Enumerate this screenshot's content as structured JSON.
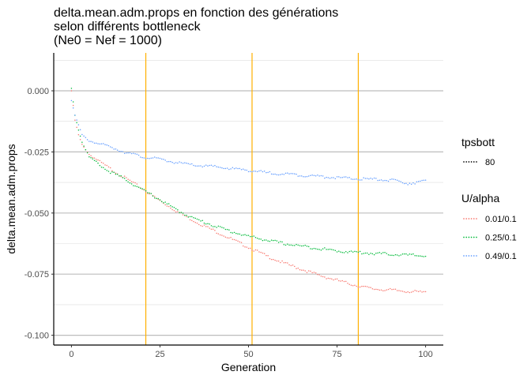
{
  "chart_data": {
    "type": "scatter",
    "title_lines": [
      "delta.mean.adm.props en fonction des générations",
      " selon différents bottleneck",
      " (Ne0 = Nef = 1000)"
    ],
    "xlabel": "Generation",
    "ylabel": "delta.mean.adm.props",
    "xlim": [
      -5,
      105
    ],
    "ylim": [
      -0.104,
      0.0155
    ],
    "x_ticks": [
      0,
      25,
      50,
      75,
      100
    ],
    "x_tick_labels": [
      "0",
      "25",
      "50",
      "75",
      "100"
    ],
    "y_ticks": [
      0.0,
      -0.025,
      -0.05,
      -0.075,
      -0.1
    ],
    "y_tick_labels": [
      "0.000",
      "-0.025",
      "-0.050",
      "-0.075",
      "-0.100"
    ],
    "y_minor_ticks": [
      0.0125,
      -0.0125,
      -0.0375,
      -0.0625,
      -0.0875
    ],
    "grid": true,
    "vlines": {
      "x": [
        21,
        51,
        81
      ],
      "color": "#FFB000"
    },
    "legend_placement": "right",
    "legends": [
      {
        "title": "tpsbott",
        "entries": [
          {
            "label": "80",
            "color": "#000000"
          }
        ]
      },
      {
        "title": "U/alpha",
        "entries": [
          {
            "label": "0.01/0.1",
            "color": "#F8766D"
          },
          {
            "label": "0.25/0.1",
            "color": "#00BA38"
          },
          {
            "label": "0.49/0.1",
            "color": "#619CFF"
          }
        ]
      }
    ],
    "series": [
      {
        "name": "0.01/0.1",
        "color": "#F8766D",
        "anchors": [
          [
            0,
            0
          ],
          [
            1,
            -0.012
          ],
          [
            2,
            -0.018
          ],
          [
            3,
            -0.022
          ],
          [
            5,
            -0.026
          ],
          [
            10,
            -0.031
          ],
          [
            15,
            -0.0355
          ],
          [
            20,
            -0.04
          ],
          [
            25,
            -0.045
          ],
          [
            30,
            -0.0495
          ],
          [
            35,
            -0.0535
          ],
          [
            40,
            -0.057
          ],
          [
            45,
            -0.0605
          ],
          [
            50,
            -0.064
          ],
          [
            55,
            -0.0675
          ],
          [
            60,
            -0.0705
          ],
          [
            65,
            -0.073
          ],
          [
            70,
            -0.0755
          ],
          [
            75,
            -0.0775
          ],
          [
            80,
            -0.0795
          ],
          [
            85,
            -0.081
          ],
          [
            90,
            -0.0815
          ],
          [
            95,
            -0.082
          ],
          [
            100,
            -0.0825
          ]
        ]
      },
      {
        "name": "0.25/0.1",
        "color": "#00BA38",
        "anchors": [
          [
            0,
            0.001
          ],
          [
            1,
            -0.01
          ],
          [
            2,
            -0.016
          ],
          [
            3,
            -0.021
          ],
          [
            5,
            -0.027
          ],
          [
            10,
            -0.0325
          ],
          [
            15,
            -0.036
          ],
          [
            20,
            -0.0405
          ],
          [
            25,
            -0.0445
          ],
          [
            30,
            -0.049
          ],
          [
            35,
            -0.0525
          ],
          [
            40,
            -0.055
          ],
          [
            45,
            -0.0575
          ],
          [
            50,
            -0.0595
          ],
          [
            55,
            -0.061
          ],
          [
            60,
            -0.0625
          ],
          [
            65,
            -0.0635
          ],
          [
            70,
            -0.0645
          ],
          [
            75,
            -0.0655
          ],
          [
            80,
            -0.066
          ],
          [
            85,
            -0.0665
          ],
          [
            90,
            -0.0668
          ],
          [
            95,
            -0.0672
          ],
          [
            100,
            -0.0675
          ]
        ]
      },
      {
        "name": "0.49/0.1",
        "color": "#619CFF",
        "anchors": [
          [
            0,
            -0.004
          ],
          [
            1,
            -0.01
          ],
          [
            2,
            -0.014
          ],
          [
            3,
            -0.018
          ],
          [
            5,
            -0.0205
          ],
          [
            10,
            -0.0225
          ],
          [
            15,
            -0.025
          ],
          [
            20,
            -0.027
          ],
          [
            25,
            -0.028
          ],
          [
            30,
            -0.0295
          ],
          [
            35,
            -0.0305
          ],
          [
            40,
            -0.031
          ],
          [
            45,
            -0.0318
          ],
          [
            50,
            -0.0325
          ],
          [
            55,
            -0.0335
          ],
          [
            60,
            -0.034
          ],
          [
            65,
            -0.0345
          ],
          [
            70,
            -0.035
          ],
          [
            75,
            -0.0355
          ],
          [
            80,
            -0.036
          ],
          [
            85,
            -0.0362
          ],
          [
            90,
            -0.0365
          ],
          [
            95,
            -0.0378
          ],
          [
            100,
            -0.037
          ]
        ]
      }
    ]
  }
}
